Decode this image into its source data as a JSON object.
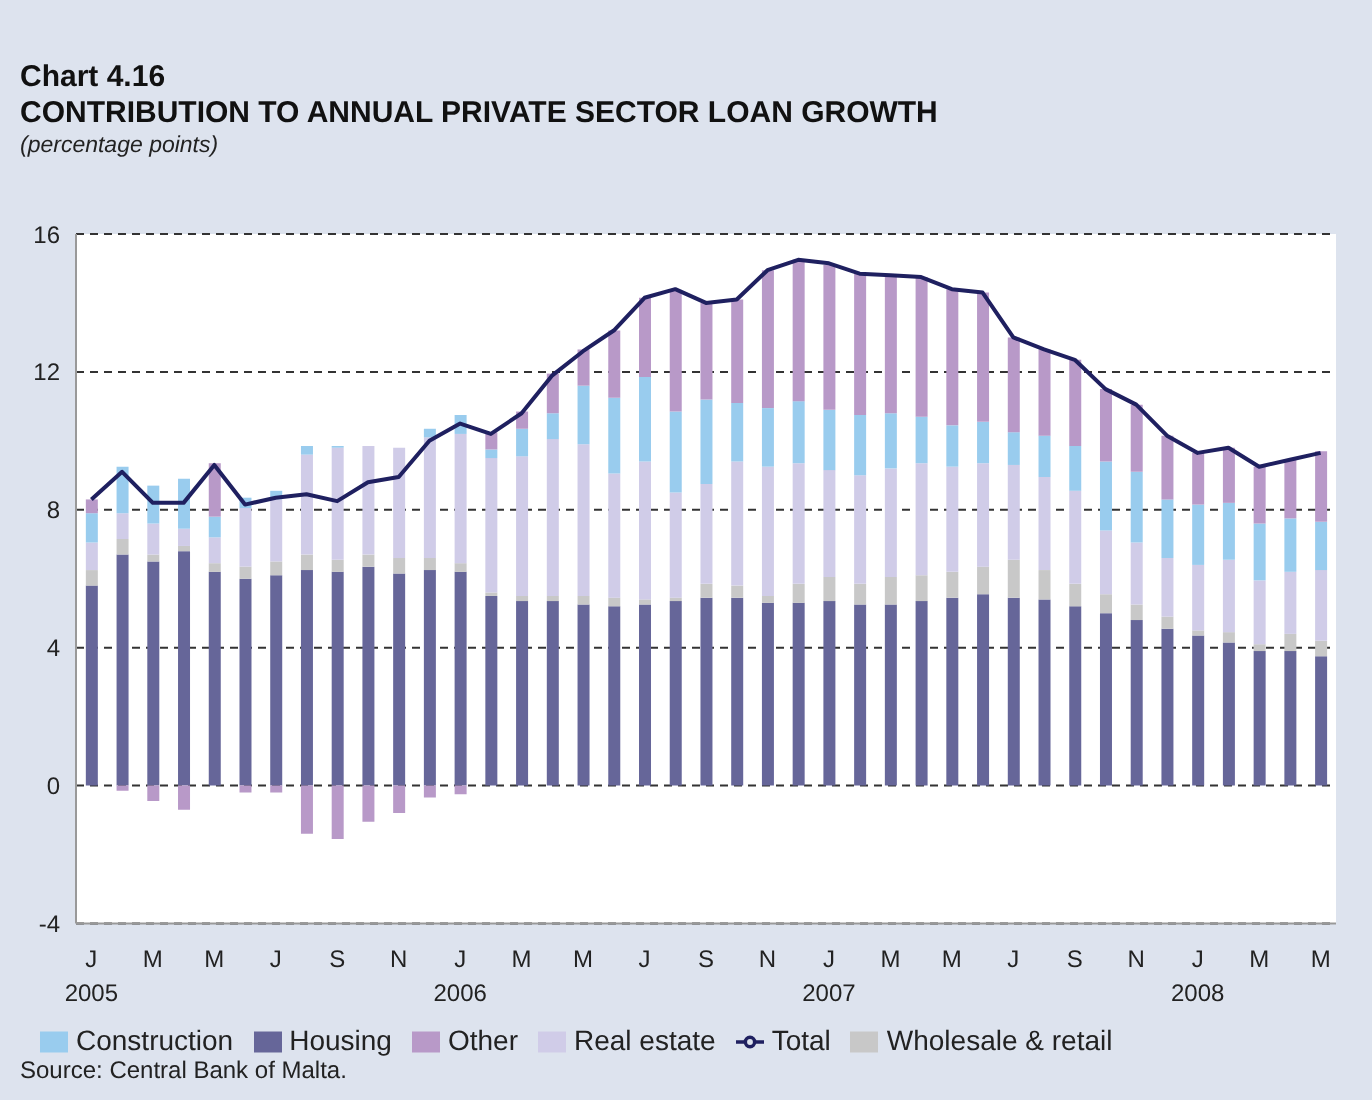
{
  "chart_data": {
    "type": "bar",
    "title": "Chart 4.16",
    "subtitle": "CONTRIBUTION TO ANNUAL PRIVATE SECTOR LOAN GROWTH",
    "ylabel": "(percentage points)",
    "categories": [
      "J 2005",
      null,
      "M",
      null,
      "M",
      null,
      "J",
      null,
      "S",
      null,
      "N",
      null,
      "J 2006",
      null,
      "M",
      null,
      "M",
      null,
      "J",
      null,
      "S",
      null,
      "N",
      null,
      "J 2007",
      null,
      "M",
      null,
      "M",
      null,
      "J",
      null,
      "S",
      null,
      "N",
      null,
      "J 2008",
      null,
      "M",
      null,
      "M"
    ],
    "stacked": true,
    "ylim": [
      -4,
      16
    ],
    "yticks": [
      -4,
      0,
      4,
      8,
      12,
      16
    ],
    "grid": "y",
    "legend": "bottom",
    "marker": "none",
    "series": [
      {
        "name": "Housing",
        "color": "#666699",
        "values": [
          5.8,
          6.7,
          6.5,
          6.8,
          6.2,
          6.0,
          6.1,
          6.25,
          6.2,
          6.35,
          6.15,
          6.25,
          6.2,
          5.5,
          5.35,
          5.35,
          5.25,
          5.2,
          5.25,
          5.35,
          5.45,
          5.45,
          5.3,
          5.3,
          5.35,
          5.25,
          5.25,
          5.35,
          5.45,
          5.55,
          5.45,
          5.4,
          5.2,
          5.0,
          4.8,
          4.55,
          4.35,
          4.15,
          3.9,
          3.9,
          3.75
        ]
      },
      {
        "name": "Wholesale & retail",
        "color": "#c8c8c8",
        "values": [
          0.45,
          0.45,
          0.2,
          0.15,
          0.25,
          0.35,
          0.4,
          0.45,
          0.35,
          0.35,
          0.45,
          0.35,
          0.25,
          0.1,
          0.15,
          0.15,
          0.25,
          0.25,
          0.15,
          0.1,
          0.4,
          0.35,
          0.2,
          0.55,
          0.7,
          0.6,
          0.8,
          0.75,
          0.75,
          0.8,
          1.1,
          0.85,
          0.65,
          0.55,
          0.45,
          0.35,
          0.15,
          0.3,
          0.2,
          0.5,
          0.45
        ]
      },
      {
        "name": "Real estate",
        "color": "#d0cce8",
        "values": [
          0.8,
          0.75,
          0.9,
          0.5,
          0.75,
          1.7,
          1.8,
          2.9,
          3.25,
          3.15,
          3.2,
          3.5,
          3.75,
          3.9,
          4.05,
          4.55,
          4.4,
          3.6,
          4.0,
          3.05,
          2.9,
          3.6,
          3.75,
          3.5,
          3.1,
          3.15,
          3.15,
          3.25,
          3.05,
          3.0,
          2.75,
          2.7,
          2.7,
          1.85,
          1.8,
          1.7,
          1.9,
          2.1,
          1.85,
          1.8,
          2.05
        ]
      },
      {
        "name": "Construction",
        "color": "#99ccee",
        "values": [
          0.85,
          1.35,
          1.1,
          1.45,
          0.6,
          0.3,
          0.25,
          0.25,
          0.05,
          0,
          0,
          0.25,
          0.55,
          0.25,
          0.8,
          0.75,
          1.7,
          2.2,
          2.45,
          2.35,
          2.45,
          1.7,
          1.7,
          1.8,
          1.75,
          1.75,
          1.6,
          1.35,
          1.2,
          1.2,
          0.95,
          1.2,
          1.3,
          2.0,
          2.05,
          1.7,
          1.75,
          1.65,
          1.65,
          1.55,
          1.4
        ]
      },
      {
        "name": "Other",
        "color": "#b899c8",
        "values": [
          0.4,
          -0.15,
          -0.45,
          -0.7,
          1.55,
          -0.2,
          -0.2,
          -1.4,
          -1.55,
          -1.05,
          -0.8,
          -0.35,
          -0.25,
          0.5,
          0.5,
          1.15,
          1.05,
          1.95,
          2.3,
          3.5,
          2.8,
          3.0,
          4.0,
          4.1,
          4.2,
          4.1,
          3.95,
          4.05,
          3.95,
          3.75,
          2.75,
          2.5,
          2.5,
          2.1,
          1.95,
          1.85,
          1.5,
          1.6,
          1.65,
          1.7,
          2.05
        ]
      },
      {
        "name": "Total",
        "type": "line",
        "color": "#1f2060",
        "values": [
          8.3,
          9.1,
          8.2,
          8.2,
          9.3,
          8.15,
          8.35,
          8.45,
          8.25,
          8.8,
          8.95,
          10.0,
          10.5,
          10.2,
          10.8,
          11.9,
          12.6,
          13.2,
          14.15,
          14.4,
          14.0,
          14.1,
          14.95,
          15.25,
          15.15,
          14.85,
          14.8,
          14.75,
          14.4,
          14.3,
          13.0,
          12.65,
          12.35,
          11.5,
          11.05,
          10.15,
          9.65,
          9.8,
          9.25,
          9.45,
          9.65
        ]
      }
    ],
    "annotations": [
      "Source: Central Bank of Malta."
    ]
  }
}
